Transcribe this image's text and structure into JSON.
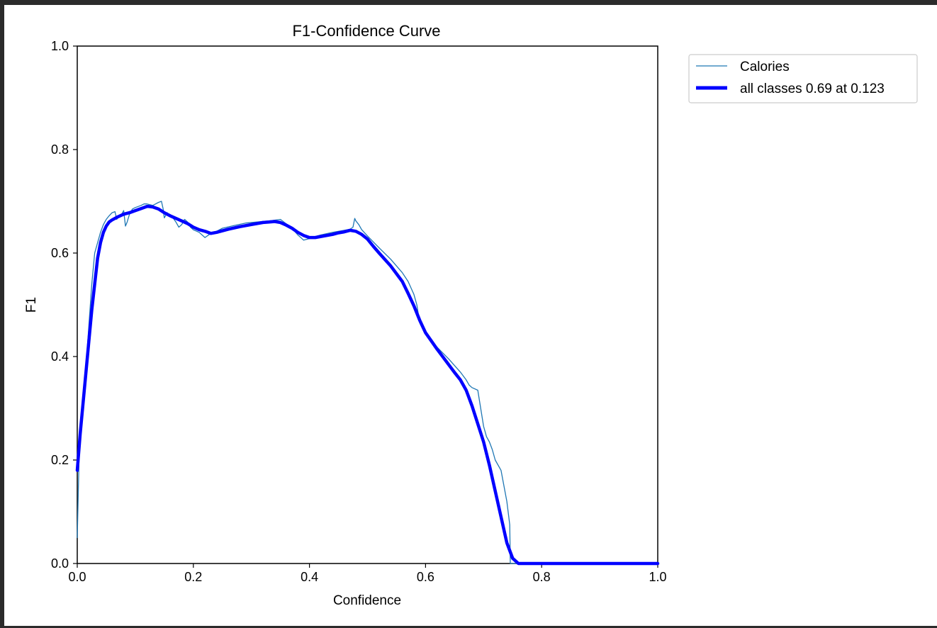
{
  "chart_data": {
    "type": "line",
    "title": "F1-Confidence Curve",
    "xlabel": "Confidence",
    "ylabel": "F1",
    "xlim": [
      0.0,
      1.0
    ],
    "ylim": [
      0.0,
      1.0
    ],
    "xticks": [
      "0.0",
      "0.2",
      "0.4",
      "0.6",
      "0.8",
      "1.0"
    ],
    "yticks": [
      "0.0",
      "0.2",
      "0.4",
      "0.6",
      "0.8",
      "1.0"
    ],
    "grid": false,
    "legend_position": "outside upper right",
    "legend": [
      "Calories",
      "all classes 0.69 at 0.123"
    ],
    "series": [
      {
        "name": "Calories",
        "color": "#1f77b4",
        "x": [
          0.0,
          0.003,
          0.008,
          0.015,
          0.02,
          0.025,
          0.03,
          0.035,
          0.04,
          0.045,
          0.05,
          0.055,
          0.06,
          0.065,
          0.068,
          0.07,
          0.075,
          0.08,
          0.083,
          0.086,
          0.09,
          0.095,
          0.1,
          0.105,
          0.11,
          0.115,
          0.12,
          0.13,
          0.14,
          0.145,
          0.148,
          0.15,
          0.155,
          0.16,
          0.165,
          0.17,
          0.175,
          0.18,
          0.185,
          0.19,
          0.195,
          0.2,
          0.21,
          0.22,
          0.23,
          0.24,
          0.25,
          0.27,
          0.29,
          0.31,
          0.33,
          0.35,
          0.37,
          0.38,
          0.39,
          0.4,
          0.41,
          0.42,
          0.44,
          0.46,
          0.47,
          0.475,
          0.478,
          0.48,
          0.485,
          0.49,
          0.5,
          0.52,
          0.54,
          0.56,
          0.57,
          0.58,
          0.585,
          0.59,
          0.6,
          0.61,
          0.62,
          0.64,
          0.66,
          0.67,
          0.675,
          0.68,
          0.69,
          0.695,
          0.7,
          0.705,
          0.71,
          0.715,
          0.72,
          0.73,
          0.74,
          0.745,
          0.746,
          0.75,
          0.8,
          0.9,
          1.0
        ],
        "values": [
          0.05,
          0.2,
          0.28,
          0.38,
          0.46,
          0.54,
          0.6,
          0.62,
          0.64,
          0.655,
          0.665,
          0.672,
          0.678,
          0.68,
          0.665,
          0.668,
          0.672,
          0.682,
          0.652,
          0.66,
          0.675,
          0.685,
          0.688,
          0.69,
          0.692,
          0.695,
          0.695,
          0.692,
          0.698,
          0.7,
          0.685,
          0.668,
          0.678,
          0.672,
          0.668,
          0.66,
          0.65,
          0.655,
          0.665,
          0.66,
          0.65,
          0.645,
          0.64,
          0.63,
          0.638,
          0.642,
          0.648,
          0.653,
          0.658,
          0.66,
          0.662,
          0.665,
          0.648,
          0.635,
          0.625,
          0.628,
          0.632,
          0.635,
          0.64,
          0.644,
          0.646,
          0.65,
          0.667,
          0.662,
          0.655,
          0.645,
          0.633,
          0.61,
          0.588,
          0.562,
          0.545,
          0.52,
          0.5,
          0.465,
          0.445,
          0.43,
          0.418,
          0.395,
          0.37,
          0.355,
          0.345,
          0.34,
          0.335,
          0.3,
          0.265,
          0.245,
          0.235,
          0.22,
          0.2,
          0.18,
          0.12,
          0.075,
          0.0,
          0.0,
          0.0,
          0.0,
          0.0
        ]
      },
      {
        "name": "all classes 0.69 at 0.123",
        "color": "#0000ff",
        "x": [
          0.0,
          0.005,
          0.01,
          0.015,
          0.02,
          0.025,
          0.03,
          0.035,
          0.04,
          0.045,
          0.05,
          0.055,
          0.06,
          0.07,
          0.08,
          0.09,
          0.1,
          0.11,
          0.12,
          0.123,
          0.13,
          0.14,
          0.15,
          0.16,
          0.17,
          0.18,
          0.19,
          0.2,
          0.21,
          0.22,
          0.23,
          0.24,
          0.26,
          0.28,
          0.3,
          0.32,
          0.33,
          0.34,
          0.35,
          0.36,
          0.37,
          0.38,
          0.39,
          0.4,
          0.41,
          0.42,
          0.43,
          0.44,
          0.45,
          0.46,
          0.47,
          0.48,
          0.49,
          0.5,
          0.51,
          0.52,
          0.54,
          0.56,
          0.57,
          0.58,
          0.59,
          0.6,
          0.61,
          0.62,
          0.63,
          0.64,
          0.65,
          0.66,
          0.67,
          0.68,
          0.69,
          0.7,
          0.71,
          0.72,
          0.73,
          0.74,
          0.75,
          0.76,
          0.77,
          0.8,
          0.9,
          1.0
        ],
        "values": [
          0.18,
          0.25,
          0.31,
          0.37,
          0.43,
          0.49,
          0.54,
          0.59,
          0.62,
          0.64,
          0.652,
          0.66,
          0.664,
          0.67,
          0.675,
          0.678,
          0.682,
          0.686,
          0.69,
          0.69,
          0.689,
          0.685,
          0.678,
          0.672,
          0.667,
          0.662,
          0.657,
          0.65,
          0.645,
          0.642,
          0.638,
          0.64,
          0.646,
          0.651,
          0.655,
          0.659,
          0.66,
          0.661,
          0.659,
          0.654,
          0.648,
          0.64,
          0.634,
          0.63,
          0.63,
          0.632,
          0.634,
          0.636,
          0.639,
          0.641,
          0.644,
          0.642,
          0.636,
          0.627,
          0.613,
          0.6,
          0.575,
          0.545,
          0.522,
          0.498,
          0.47,
          0.446,
          0.43,
          0.414,
          0.399,
          0.384,
          0.369,
          0.355,
          0.335,
          0.305,
          0.27,
          0.235,
          0.19,
          0.14,
          0.09,
          0.04,
          0.01,
          0.0,
          0.0,
          0.0,
          0.0,
          0.0
        ]
      }
    ]
  }
}
